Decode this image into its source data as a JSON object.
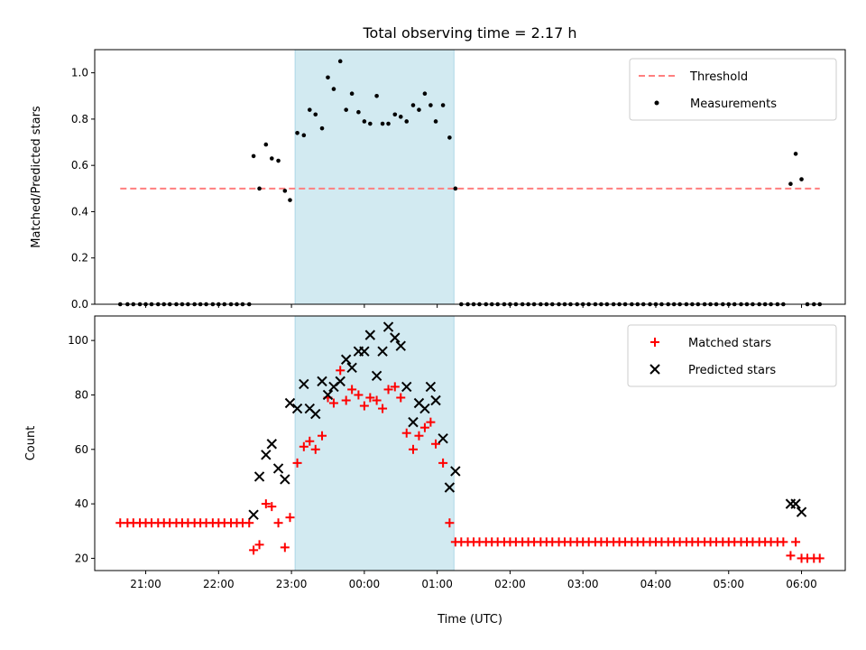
{
  "chart_data": [
    {
      "type": "scatter",
      "title": "Total observing time = 2.17 h",
      "ylabel": "Matched/Predicted stars",
      "xlabel": "",
      "xlim": [
        20.3,
        30.6
      ],
      "ylim": [
        0,
        1.1
      ],
      "yticks": [
        0.0,
        0.2,
        0.4,
        0.6,
        0.8,
        1.0
      ],
      "ytick_labels": [
        "0.0",
        "0.2",
        "0.4",
        "0.6",
        "0.8",
        "1.0"
      ],
      "shaded_interval": {
        "x0": 23.05,
        "x1": 25.23,
        "color": "#add8e6"
      },
      "legend": {
        "position": "top-right",
        "entries": [
          "Threshold",
          "Measurements"
        ]
      },
      "series": [
        {
          "name": "Threshold",
          "style": "dashed-line",
          "color": "#ff7f7f",
          "x": [
            20.65,
            30.25
          ],
          "y": [
            0.5,
            0.5
          ]
        },
        {
          "name": "Measurements",
          "style": "dot",
          "color": "#000000",
          "x": [
            20.65,
            20.75,
            20.83,
            20.92,
            21.0,
            21.08,
            21.17,
            21.25,
            21.33,
            21.42,
            21.5,
            21.58,
            21.67,
            21.75,
            21.83,
            21.92,
            22.0,
            22.08,
            22.17,
            22.25,
            22.33,
            22.42,
            22.48,
            22.56,
            22.65,
            22.73,
            22.82,
            22.91,
            22.98,
            23.08,
            23.17,
            23.25,
            23.33,
            23.42,
            23.5,
            23.58,
            23.67,
            23.75,
            23.83,
            23.92,
            24.0,
            24.08,
            24.17,
            24.25,
            24.33,
            24.42,
            24.5,
            24.58,
            24.67,
            24.75,
            24.83,
            24.91,
            24.98,
            25.08,
            25.17,
            25.25,
            25.33,
            25.42,
            25.5,
            25.58,
            25.67,
            25.75,
            25.83,
            25.92,
            26.0,
            26.08,
            26.17,
            26.25,
            26.33,
            26.42,
            26.5,
            26.58,
            26.67,
            26.75,
            26.83,
            26.92,
            27.0,
            27.08,
            27.17,
            27.25,
            27.33,
            27.42,
            27.5,
            27.58,
            27.67,
            27.75,
            27.83,
            27.92,
            28.0,
            28.08,
            28.17,
            28.25,
            28.33,
            28.42,
            28.5,
            28.58,
            28.67,
            28.75,
            28.83,
            28.92,
            29.0,
            29.08,
            29.17,
            29.25,
            29.33,
            29.42,
            29.5,
            29.58,
            29.67,
            29.75,
            29.85,
            29.92,
            30.0,
            30.08,
            30.17,
            30.25
          ],
          "y": [
            0,
            0,
            0,
            0,
            0,
            0,
            0,
            0,
            0,
            0,
            0,
            0,
            0,
            0,
            0,
            0,
            0,
            0,
            0,
            0,
            0,
            0,
            0.64,
            0.5,
            0.69,
            0.63,
            0.62,
            0.49,
            0.45,
            0.74,
            0.73,
            0.84,
            0.82,
            0.76,
            0.98,
            0.93,
            1.05,
            0.84,
            0.91,
            0.83,
            0.79,
            0.78,
            0.9,
            0.78,
            0.78,
            0.82,
            0.81,
            0.79,
            0.86,
            0.84,
            0.91,
            0.86,
            0.79,
            0.86,
            0.72,
            0.5,
            0,
            0,
            0,
            0,
            0,
            0,
            0,
            0,
            0,
            0,
            0,
            0,
            0,
            0,
            0,
            0,
            0,
            0,
            0,
            0,
            0,
            0,
            0,
            0,
            0,
            0,
            0,
            0,
            0,
            0,
            0,
            0,
            0,
            0,
            0,
            0,
            0,
            0,
            0,
            0,
            0,
            0,
            0,
            0,
            0,
            0,
            0,
            0,
            0,
            0,
            0,
            0,
            0,
            0,
            0.52,
            0.65,
            0.54,
            0,
            0,
            0
          ]
        }
      ]
    },
    {
      "type": "scatter",
      "title": "",
      "ylabel": "Count",
      "xlabel": "Time (UTC)",
      "xlim": [
        20.3,
        30.6
      ],
      "ylim": [
        15.5,
        109
      ],
      "yticks": [
        20,
        40,
        60,
        80,
        100
      ],
      "ytick_labels": [
        "20",
        "40",
        "60",
        "80",
        "100"
      ],
      "xticks": [
        21,
        22,
        23,
        24,
        25,
        26,
        27,
        28,
        29,
        30
      ],
      "xtick_labels": [
        "21:00",
        "22:00",
        "23:00",
        "00:00",
        "01:00",
        "02:00",
        "03:00",
        "04:00",
        "05:00",
        "06:00"
      ],
      "shaded_interval": {
        "x0": 23.05,
        "x1": 25.23,
        "color": "#add8e6"
      },
      "legend": {
        "position": "top-right",
        "entries": [
          "Matched stars",
          "Predicted stars"
        ]
      },
      "series": [
        {
          "name": "Matched stars",
          "style": "plus",
          "color": "#ff0000",
          "x": [
            20.65,
            20.75,
            20.83,
            20.92,
            21.0,
            21.08,
            21.17,
            21.25,
            21.33,
            21.42,
            21.5,
            21.58,
            21.67,
            21.75,
            21.83,
            21.92,
            22.0,
            22.08,
            22.17,
            22.25,
            22.33,
            22.42,
            22.48,
            22.56,
            22.65,
            22.73,
            22.82,
            22.91,
            22.98,
            23.08,
            23.17,
            23.25,
            23.33,
            23.42,
            23.5,
            23.58,
            23.67,
            23.75,
            23.83,
            23.92,
            24.0,
            24.08,
            24.17,
            24.25,
            24.33,
            24.42,
            24.5,
            24.58,
            24.67,
            24.75,
            24.83,
            24.91,
            24.98,
            25.08,
            25.17,
            25.25,
            25.33,
            25.42,
            25.5,
            25.58,
            25.67,
            25.75,
            25.83,
            25.92,
            26.0,
            26.08,
            26.17,
            26.25,
            26.33,
            26.42,
            26.5,
            26.58,
            26.67,
            26.75,
            26.83,
            26.92,
            27.0,
            27.08,
            27.17,
            27.25,
            27.33,
            27.42,
            27.5,
            27.58,
            27.67,
            27.75,
            27.83,
            27.92,
            28.0,
            28.08,
            28.17,
            28.25,
            28.33,
            28.42,
            28.5,
            28.58,
            28.67,
            28.75,
            28.83,
            28.92,
            29.0,
            29.08,
            29.17,
            29.25,
            29.33,
            29.42,
            29.5,
            29.58,
            29.67,
            29.75,
            29.85,
            29.92,
            30.0,
            30.08,
            30.17,
            30.25
          ],
          "y": [
            33,
            33,
            33,
            33,
            33,
            33,
            33,
            33,
            33,
            33,
            33,
            33,
            33,
            33,
            33,
            33,
            33,
            33,
            33,
            33,
            33,
            33,
            23,
            25,
            40,
            39,
            33,
            24,
            35,
            55,
            61,
            63,
            60,
            65,
            79,
            77,
            89,
            78,
            82,
            80,
            76,
            79,
            78,
            75,
            82,
            83,
            79,
            66,
            60,
            65,
            68,
            70,
            62,
            55,
            33,
            26,
            26,
            26,
            26,
            26,
            26,
            26,
            26,
            26,
            26,
            26,
            26,
            26,
            26,
            26,
            26,
            26,
            26,
            26,
            26,
            26,
            26,
            26,
            26,
            26,
            26,
            26,
            26,
            26,
            26,
            26,
            26,
            26,
            26,
            26,
            26,
            26,
            26,
            26,
            26,
            26,
            26,
            26,
            26,
            26,
            26,
            26,
            26,
            26,
            26,
            26,
            26,
            26,
            26,
            26,
            21,
            26,
            20,
            20,
            20,
            20
          ]
        },
        {
          "name": "Predicted stars",
          "style": "x",
          "color": "#000000",
          "x": [
            22.48,
            22.56,
            22.65,
            22.73,
            22.82,
            22.91,
            22.98,
            23.08,
            23.17,
            23.25,
            23.33,
            23.42,
            23.5,
            23.58,
            23.67,
            23.75,
            23.83,
            23.92,
            24.0,
            24.08,
            24.17,
            24.25,
            24.33,
            24.42,
            24.5,
            24.58,
            24.67,
            24.75,
            24.83,
            24.91,
            24.98,
            25.08,
            25.17,
            25.25,
            29.85,
            29.92,
            30.0
          ],
          "y": [
            36,
            50,
            58,
            62,
            53,
            49,
            77,
            75,
            84,
            75,
            73,
            85,
            80,
            83,
            85,
            93,
            90,
            96,
            96,
            102,
            87,
            96,
            105,
            101,
            98,
            83,
            70,
            77,
            75,
            83,
            78,
            64,
            46,
            52,
            40,
            40,
            37
          ]
        }
      ]
    }
  ]
}
